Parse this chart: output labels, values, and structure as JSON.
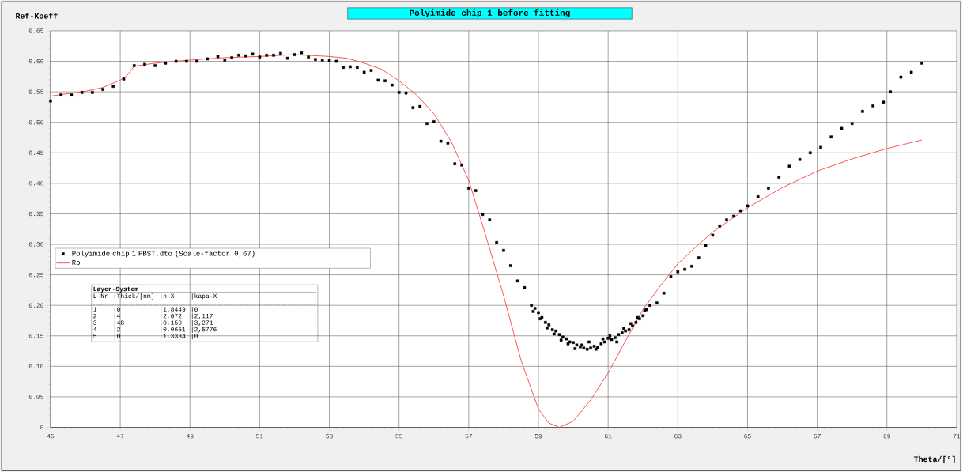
{
  "chart_data": {
    "type": "scatter",
    "title": "Polyimide chip 1 before fitting",
    "xlabel": "Theta/[°]",
    "ylabel": "Ref-Koeff",
    "xlim": [
      45,
      71
    ],
    "xticks": [
      45,
      47,
      49,
      51,
      53,
      55,
      57,
      59,
      61,
      63,
      65,
      67,
      69,
      71
    ],
    "ylim": [
      0,
      0.65
    ],
    "yticks": [
      0,
      0.05,
      {
        "value": 0.1,
        "label": "0.10"
      },
      0.15,
      {
        "value": 0.2,
        "label": "0.20"
      },
      0.25,
      {
        "value": 0.3,
        "label": "0.30"
      },
      0.35,
      {
        "value": 0.4,
        "label": "0.40"
      },
      0.45,
      {
        "value": 0.5,
        "label": "0.50"
      },
      0.55,
      {
        "value": 0.6,
        "label": "0.60"
      },
      0.65
    ],
    "grid": true,
    "legend": "left",
    "series": [
      {
        "name": "Polyimide chip 1 PBST.dto (Scale-factor:0,67)",
        "marker": "square",
        "color": "#000000",
        "x": [
          45.0,
          45.3,
          45.6,
          45.9,
          46.2,
          46.5,
          46.8,
          47.1,
          47.4,
          47.7,
          48.0,
          48.3,
          48.6,
          48.9,
          49.2,
          49.5,
          49.8,
          50.0,
          50.2,
          50.4,
          50.6,
          50.8,
          51.0,
          51.2,
          51.4,
          51.6,
          51.8,
          52.0,
          52.2,
          52.4,
          52.6,
          52.8,
          53.0,
          53.2,
          53.4,
          53.6,
          53.8,
          54.0,
          54.2,
          54.4,
          54.6,
          54.8,
          55.0,
          55.2,
          55.4,
          55.6,
          55.8,
          56.0,
          56.2,
          56.4,
          56.6,
          56.8,
          57.0,
          57.2,
          57.4,
          57.6,
          57.8,
          58.0,
          58.2,
          58.4,
          58.6,
          58.8,
          58.85,
          58.9,
          59.0,
          59.05,
          59.1,
          59.2,
          59.25,
          59.3,
          59.4,
          59.45,
          59.5,
          59.6,
          59.65,
          59.7,
          59.8,
          59.85,
          59.9,
          60.0,
          60.05,
          60.1,
          60.2,
          60.25,
          60.3,
          60.4,
          60.45,
          60.5,
          60.6,
          60.65,
          60.7,
          60.8,
          60.85,
          60.9,
          61.0,
          61.05,
          61.1,
          61.2,
          61.25,
          61.3,
          61.4,
          61.45,
          61.5,
          61.6,
          61.65,
          61.7,
          61.8,
          61.85,
          61.9,
          62.0,
          62.05,
          62.1,
          62.2,
          62.4,
          62.6,
          62.8,
          63.0,
          63.2,
          63.4,
          63.6,
          63.8,
          64.0,
          64.2,
          64.4,
          64.6,
          64.8,
          65.0,
          65.3,
          65.6,
          65.9,
          66.2,
          66.5,
          66.8,
          67.1,
          67.4,
          67.7,
          68.0,
          68.3,
          68.6,
          68.9,
          69.1,
          69.4,
          69.7,
          70.0
        ],
        "values": [
          0.535,
          0.545,
          0.545,
          0.549,
          0.549,
          0.554,
          0.559,
          0.571,
          0.593,
          0.595,
          0.593,
          0.597,
          0.6,
          0.6,
          0.6,
          0.604,
          0.608,
          0.602,
          0.606,
          0.61,
          0.609,
          0.612,
          0.607,
          0.61,
          0.61,
          0.613,
          0.605,
          0.611,
          0.614,
          0.607,
          0.603,
          0.602,
          0.601,
          0.6,
          0.59,
          0.591,
          0.59,
          0.582,
          0.585,
          0.569,
          0.568,
          0.561,
          0.549,
          0.548,
          0.524,
          0.526,
          0.498,
          0.501,
          0.469,
          0.466,
          0.432,
          0.43,
          0.392,
          0.388,
          0.349,
          0.34,
          0.303,
          0.29,
          0.265,
          0.24,
          0.229,
          0.2,
          0.19,
          0.195,
          0.188,
          0.178,
          0.18,
          0.172,
          0.163,
          0.168,
          0.16,
          0.153,
          0.158,
          0.152,
          0.143,
          0.148,
          0.145,
          0.137,
          0.14,
          0.139,
          0.129,
          0.135,
          0.132,
          0.135,
          0.13,
          0.128,
          0.14,
          0.13,
          0.133,
          0.128,
          0.131,
          0.137,
          0.145,
          0.14,
          0.146,
          0.15,
          0.144,
          0.147,
          0.14,
          0.152,
          0.155,
          0.162,
          0.158,
          0.16,
          0.17,
          0.166,
          0.172,
          0.18,
          0.178,
          0.183,
          0.192,
          0.193,
          0.2,
          0.204,
          0.22,
          0.247,
          0.255,
          0.259,
          0.264,
          0.278,
          0.298,
          0.315,
          0.33,
          0.34,
          0.346,
          0.355,
          0.363,
          0.378,
          0.392,
          0.41,
          0.428,
          0.439,
          0.45,
          0.459,
          0.476,
          0.49,
          0.498,
          0.518,
          0.527,
          0.533,
          0.55,
          0.574,
          0.582,
          0.597
        ]
      },
      {
        "name": "Rp",
        "type": "line",
        "color": "#ff4040",
        "x": [
          45,
          46,
          46.5,
          47.0,
          47.2,
          47.4,
          48,
          49,
          50,
          51,
          52,
          53,
          53.5,
          54,
          54.5,
          55,
          55.5,
          56,
          56.5,
          57,
          57.5,
          58,
          58.5,
          59,
          59.3,
          59.6,
          60,
          60.5,
          61,
          61.5,
          62,
          62.5,
          63,
          63.5,
          64,
          65,
          66,
          67,
          68,
          69,
          70
        ],
        "values": [
          0.543,
          0.551,
          0.557,
          0.569,
          0.577,
          0.592,
          0.597,
          0.602,
          0.606,
          0.608,
          0.611,
          0.608,
          0.605,
          0.597,
          0.587,
          0.568,
          0.545,
          0.514,
          0.468,
          0.405,
          0.312,
          0.216,
          0.11,
          0.03,
          0.007,
          0.0,
          0.01,
          0.045,
          0.089,
          0.142,
          0.193,
          0.232,
          0.268,
          0.295,
          0.32,
          0.36,
          0.393,
          0.42,
          0.44,
          0.457,
          0.471
        ]
      }
    ],
    "annotations": [
      "Layer-System",
      "L-Nr",
      "|Thick/[nm]",
      "|n-X",
      "|kapa-X",
      "1",
      "|0",
      "|1,8449",
      "|0",
      "2",
      "|4",
      "|2,072",
      "|2,117",
      "3",
      "|48",
      "|0,159",
      "|3,271",
      "4",
      "|2",
      "|0,0651",
      "|2,5776",
      "5",
      "|0",
      "|1,3334",
      "|0"
    ]
  }
}
